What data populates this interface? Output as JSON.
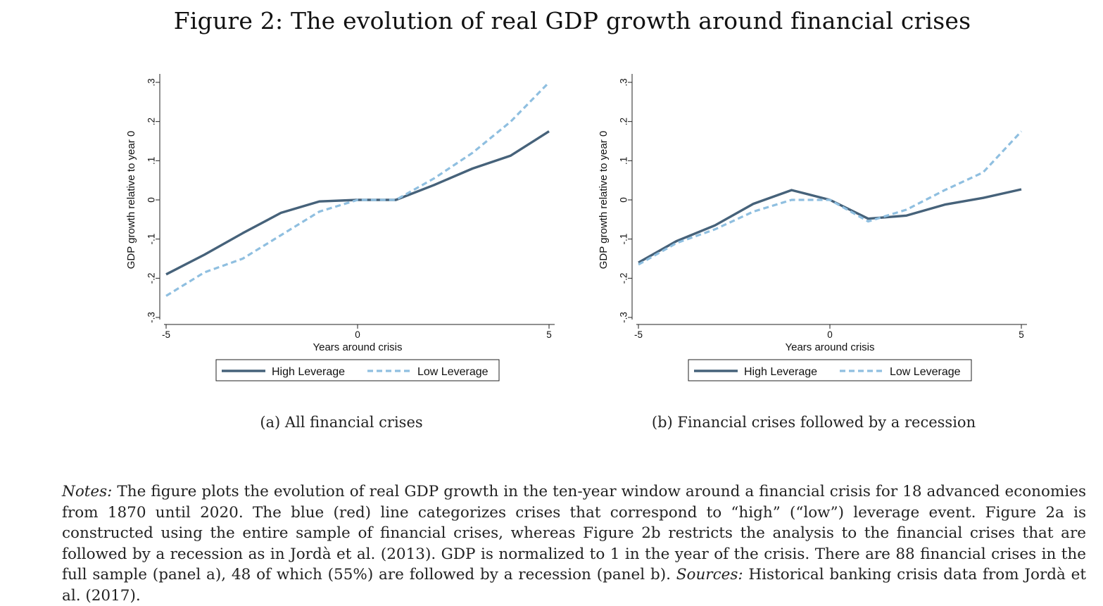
{
  "figure": {
    "title": "Figure 2: The evolution of real GDP growth around financial crises",
    "notes": {
      "label": "Notes:",
      "text": " The figure plots the evolution of real GDP growth in the ten-year window around a financial crisis for 18 advanced economies from 1870 until 2020. The blue (red) line categorizes crises that correspond to “high” (“low”) leverage event. Figure 2a is constructed using the entire sample of financial crises, whereas Figure 2b restricts the analysis to the financial crises that are followed by a recession as in Jordà et al. (2013). GDP is normalized to 1 in the year of the crisis. There are 88 financial crises in the full sample (panel a), 48 of which (55%) are followed by a recession (panel b). ",
      "sources_label": "Sources:",
      "sources_text": " Historical banking crisis data from Jordà et al. (2017)."
    }
  },
  "colors": {
    "high_leverage": "#46627a",
    "low_leverage": "#8fbfe0"
  },
  "chart_data": [
    {
      "type": "line",
      "caption": "(a) All financial crises",
      "xlabel": "Years around crisis",
      "ylabel": "GDP growth relative to year 0",
      "xlim": [
        -5,
        5
      ],
      "ylim": [
        -0.3,
        0.3
      ],
      "x_ticks": [
        -5,
        0,
        5
      ],
      "x_tick_labels": [
        "-5",
        "0",
        "5"
      ],
      "y_ticks": [
        -0.3,
        -0.2,
        -0.1,
        0,
        0.1,
        0.2,
        0.3
      ],
      "y_tick_labels": [
        "-.3",
        "-.2",
        "-.1",
        "0",
        ".1",
        ".2",
        ".3"
      ],
      "legend": "bottom",
      "x": [
        -5,
        -4,
        -3,
        -2,
        -1,
        0,
        1,
        2,
        3,
        4,
        5
      ],
      "series": [
        {
          "name": "High Leverage",
          "style": "solid",
          "values": [
            -0.19,
            -0.14,
            -0.085,
            -0.033,
            -0.004,
            0,
            0,
            0.038,
            0.08,
            0.113,
            0.175
          ]
        },
        {
          "name": "Low Leverage",
          "style": "dashed",
          "values": [
            -0.245,
            -0.185,
            -0.15,
            -0.09,
            -0.03,
            0,
            0,
            0.055,
            0.12,
            0.2,
            0.3
          ]
        }
      ]
    },
    {
      "type": "line",
      "caption": "(b) Financial crises followed by a recession",
      "xlabel": "Years around crisis",
      "ylabel": "GDP growth relative to year 0",
      "xlim": [
        -5,
        5
      ],
      "ylim": [
        -0.3,
        0.3
      ],
      "x_ticks": [
        -5,
        0,
        5
      ],
      "x_tick_labels": [
        "-5",
        "0",
        "5"
      ],
      "y_ticks": [
        -0.3,
        -0.2,
        -0.1,
        0,
        0.1,
        0.2,
        0.3
      ],
      "y_tick_labels": [
        "-.3",
        "-.2",
        "-.1",
        "0",
        ".1",
        ".2",
        ".3"
      ],
      "legend": "bottom",
      "x": [
        -5,
        -4,
        -3,
        -2,
        -1,
        0,
        1,
        2,
        3,
        4,
        5
      ],
      "series": [
        {
          "name": "High Leverage",
          "style": "solid",
          "values": [
            -0.16,
            -0.105,
            -0.065,
            -0.01,
            0.025,
            0,
            -0.048,
            -0.04,
            -0.012,
            0.005,
            0.027
          ]
        },
        {
          "name": "Low Leverage",
          "style": "dashed",
          "values": [
            -0.165,
            -0.11,
            -0.075,
            -0.03,
            0,
            0,
            -0.055,
            -0.025,
            0.025,
            0.07,
            0.175
          ]
        }
      ]
    }
  ]
}
